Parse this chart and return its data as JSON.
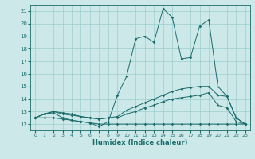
{
  "xlabel": "Humidex (Indice chaleur)",
  "background_color": "#cce8e8",
  "line_color": "#1a6b6b",
  "xlim": [
    -0.5,
    23.5
  ],
  "ylim": [
    11.5,
    21.5
  ],
  "xticks": [
    0,
    1,
    2,
    3,
    4,
    5,
    6,
    7,
    8,
    9,
    10,
    11,
    12,
    13,
    14,
    15,
    16,
    17,
    18,
    19,
    20,
    21,
    22,
    23
  ],
  "yticks": [
    12,
    13,
    14,
    15,
    16,
    17,
    18,
    19,
    20,
    21
  ],
  "series": [
    {
      "x": [
        0,
        1,
        2,
        3,
        4,
        5,
        6,
        7,
        8,
        9,
        10,
        11,
        12,
        13,
        14,
        15,
        16,
        17,
        18,
        19,
        20,
        21,
        22,
        23
      ],
      "y": [
        12.5,
        12.8,
        12.9,
        12.5,
        12.3,
        12.2,
        12.1,
        11.8,
        12.2,
        14.3,
        15.8,
        18.8,
        19.0,
        18.5,
        21.2,
        20.5,
        17.2,
        17.3,
        19.8,
        20.3,
        15.0,
        14.2,
        12.5,
        12.0
      ]
    },
    {
      "x": [
        0,
        1,
        2,
        3,
        4,
        5,
        6,
        7,
        8,
        9,
        10,
        11,
        12,
        13,
        14,
        15,
        16,
        17,
        18,
        19,
        20,
        21,
        22,
        23
      ],
      "y": [
        12.5,
        12.8,
        13.0,
        12.9,
        12.8,
        12.6,
        12.5,
        12.4,
        12.5,
        12.6,
        13.1,
        13.4,
        13.7,
        14.0,
        14.3,
        14.6,
        14.8,
        14.9,
        15.0,
        15.0,
        14.3,
        14.2,
        12.5,
        12.0
      ]
    },
    {
      "x": [
        0,
        1,
        2,
        3,
        4,
        5,
        6,
        7,
        8,
        9,
        10,
        11,
        12,
        13,
        14,
        15,
        16,
        17,
        18,
        19,
        20,
        21,
        22,
        23
      ],
      "y": [
        12.5,
        12.8,
        13.0,
        12.8,
        12.7,
        12.6,
        12.5,
        12.4,
        12.5,
        12.5,
        12.8,
        13.0,
        13.3,
        13.5,
        13.8,
        14.0,
        14.1,
        14.2,
        14.3,
        14.5,
        13.5,
        13.3,
        12.2,
        12.0
      ]
    },
    {
      "x": [
        0,
        1,
        2,
        3,
        4,
        5,
        6,
        7,
        8,
        9,
        10,
        11,
        12,
        13,
        14,
        15,
        16,
        17,
        18,
        19,
        20,
        21,
        22,
        23
      ],
      "y": [
        12.5,
        12.5,
        12.5,
        12.4,
        12.3,
        12.2,
        12.1,
        12.0,
        12.0,
        12.0,
        12.0,
        12.0,
        12.0,
        12.0,
        12.0,
        12.0,
        12.0,
        12.0,
        12.0,
        12.0,
        12.0,
        12.0,
        12.0,
        12.0
      ]
    }
  ]
}
